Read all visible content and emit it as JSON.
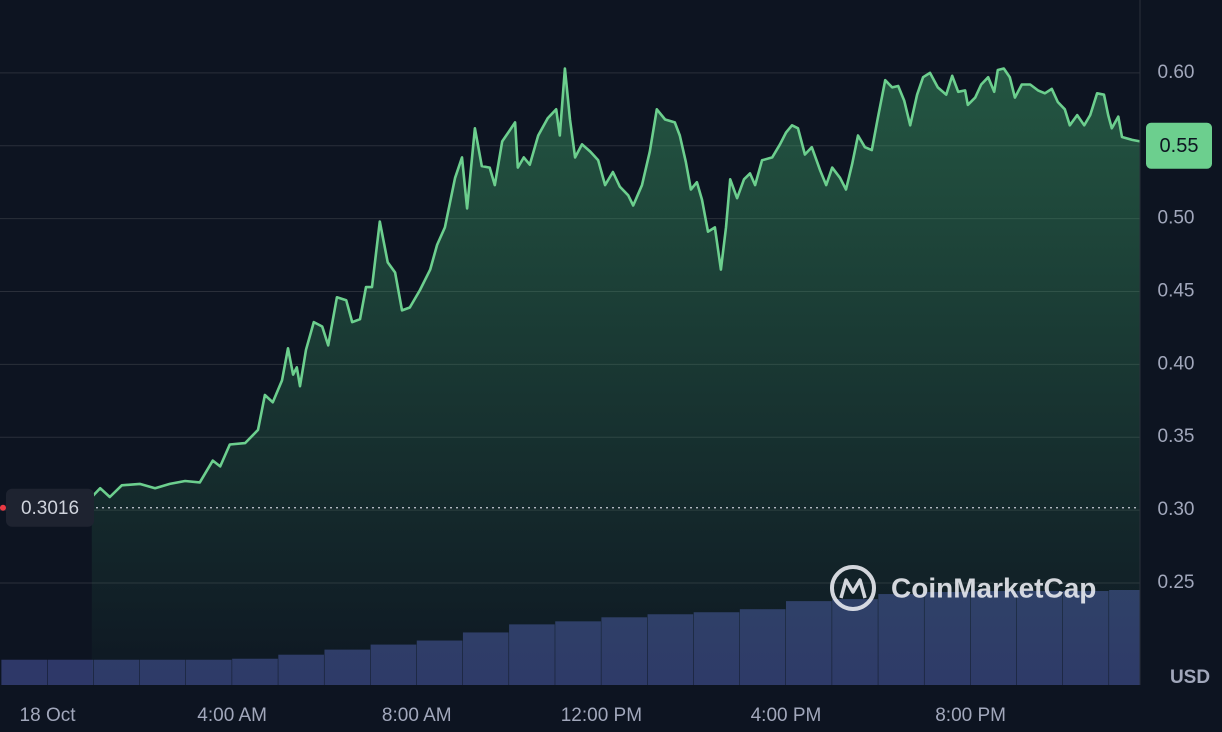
{
  "chart_data": {
    "type": "line",
    "series": [
      {
        "name": "Price",
        "color": "#6ccf8e",
        "x": [
          0.96,
          1.14,
          1.35,
          1.61,
          2.0,
          2.33,
          2.65,
          2.98,
          3.3,
          3.58,
          3.74,
          3.95,
          4.28,
          4.56,
          4.71,
          4.88,
          5.08,
          5.21,
          5.32,
          5.4,
          5.47,
          5.6,
          5.77,
          5.95,
          6.08,
          6.27,
          6.47,
          6.6,
          6.77,
          6.9,
          7.03,
          7.2,
          7.37,
          7.53,
          7.68,
          7.85,
          8.07,
          8.29,
          8.44,
          8.61,
          8.83,
          8.98,
          9.09,
          9.26,
          9.41,
          9.58,
          9.69,
          9.85,
          9.98,
          10.13,
          10.19,
          10.32,
          10.45,
          10.63,
          10.84,
          11.02,
          11.1,
          11.21,
          11.32,
          11.43,
          11.58,
          11.76,
          11.93,
          12.08,
          12.25,
          12.4,
          12.58,
          12.69,
          12.88,
          13.05,
          13.2,
          13.38,
          13.59,
          13.7,
          13.83,
          13.94,
          14.07,
          14.18,
          14.31,
          14.46,
          14.59,
          14.7,
          14.79,
          14.94,
          15.09,
          15.22,
          15.33,
          15.48,
          15.7,
          15.87,
          16.0,
          16.13,
          16.26,
          16.41,
          16.56,
          16.74,
          16.87,
          17.0,
          17.17,
          17.3,
          17.43,
          17.56,
          17.71,
          17.86,
          17.99,
          18.15,
          18.3,
          18.43,
          18.56,
          18.69,
          18.84,
          18.97,
          19.12,
          19.29,
          19.47,
          19.6,
          19.73,
          19.88,
          19.94,
          20.1,
          20.23,
          20.38,
          20.51,
          20.59,
          20.72,
          20.85,
          20.96,
          21.11,
          21.29,
          21.46,
          21.61,
          21.76,
          21.89,
          22.04,
          22.15,
          22.31,
          22.46,
          22.59,
          22.74,
          22.89,
          22.98,
          23.06,
          23.2,
          23.28,
          23.5,
          23.67
        ],
        "values": [
          0.309,
          0.315,
          0.309,
          0.317,
          0.318,
          0.315,
          0.318,
          0.32,
          0.319,
          0.334,
          0.33,
          0.345,
          0.346,
          0.355,
          0.379,
          0.374,
          0.389,
          0.411,
          0.393,
          0.398,
          0.385,
          0.41,
          0.429,
          0.426,
          0.413,
          0.446,
          0.444,
          0.429,
          0.431,
          0.453,
          0.453,
          0.498,
          0.47,
          0.463,
          0.437,
          0.439,
          0.451,
          0.465,
          0.482,
          0.494,
          0.528,
          0.542,
          0.507,
          0.562,
          0.536,
          0.535,
          0.523,
          0.553,
          0.559,
          0.566,
          0.535,
          0.542,
          0.537,
          0.557,
          0.569,
          0.575,
          0.557,
          0.603,
          0.568,
          0.542,
          0.551,
          0.546,
          0.54,
          0.523,
          0.532,
          0.522,
          0.516,
          0.509,
          0.523,
          0.546,
          0.575,
          0.568,
          0.566,
          0.557,
          0.539,
          0.52,
          0.525,
          0.513,
          0.491,
          0.494,
          0.465,
          0.494,
          0.527,
          0.514,
          0.527,
          0.531,
          0.523,
          0.54,
          0.542,
          0.551,
          0.559,
          0.564,
          0.562,
          0.544,
          0.549,
          0.533,
          0.523,
          0.535,
          0.528,
          0.52,
          0.537,
          0.557,
          0.549,
          0.547,
          0.569,
          0.595,
          0.59,
          0.591,
          0.581,
          0.564,
          0.585,
          0.597,
          0.6,
          0.59,
          0.585,
          0.598,
          0.587,
          0.588,
          0.578,
          0.583,
          0.592,
          0.597,
          0.587,
          0.602,
          0.603,
          0.597,
          0.583,
          0.592,
          0.592,
          0.588,
          0.586,
          0.589,
          0.58,
          0.575,
          0.564,
          0.571,
          0.564,
          0.571,
          0.586,
          0.585,
          0.571,
          0.562,
          0.57,
          0.556,
          0.554,
          0.553
        ]
      }
    ],
    "volume": {
      "color": "#2e3868",
      "x": [
        -1,
        0,
        1,
        2,
        3,
        4,
        5,
        6,
        7,
        8,
        9,
        10,
        11,
        12,
        13,
        14,
        15,
        16,
        17,
        18,
        19,
        20,
        21,
        22,
        23
      ],
      "values": [
        25,
        25,
        25,
        25,
        25,
        26,
        30,
        35,
        40,
        44,
        52,
        60,
        63,
        67,
        70,
        72,
        75,
        83,
        85,
        90,
        92,
        93,
        93,
        93,
        94
      ]
    },
    "open_price": 0.3016,
    "current_price": 0.55,
    "currency": "USD",
    "watermark": "CoinMarketCap",
    "xlim": [
      -1.03,
      23.67
    ],
    "xticks": [
      {
        "value": 0,
        "label": "18 Oct"
      },
      {
        "value": 4,
        "label": "4:00 AM"
      },
      {
        "value": 8,
        "label": "8:00 AM"
      },
      {
        "value": 12,
        "label": "12:00 PM"
      },
      {
        "value": 16,
        "label": "4:00 PM"
      },
      {
        "value": 20,
        "label": "8:00 PM"
      }
    ],
    "ylim": [
      0.18,
      0.65
    ],
    "yticks": [
      0.25,
      {
        "value": 0.3,
        "label": "0.30"
      },
      0.35,
      {
        "value": 0.4,
        "label": "0.40"
      },
      0.45,
      {
        "value": 0.5,
        "label": "0.50"
      },
      0.55,
      {
        "value": 0.6,
        "label": "0.60"
      }
    ],
    "grid": true
  }
}
